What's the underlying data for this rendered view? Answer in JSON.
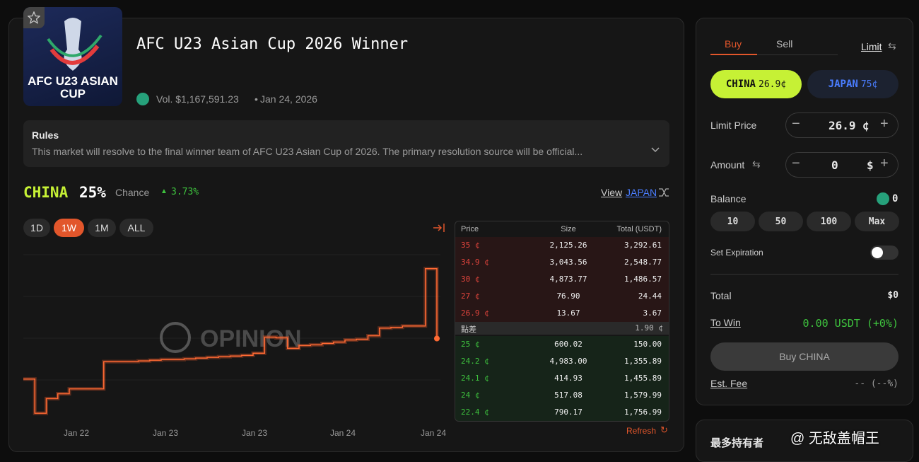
{
  "market": {
    "logo_text": "AFC U23 ASIAN CUP",
    "title": "AFC U23 Asian Cup 2026 Winner",
    "volume": "Vol. $1,167,591.23",
    "date": "Jan 24, 2026"
  },
  "rules": {
    "heading": "Rules",
    "text": "This market will resolve to the final winner team of AFC U23 Asian Cup of 2026. The primary resolution source will be official..."
  },
  "outcome": {
    "name": "CHINA",
    "chance": "25%",
    "chance_label": "Chance",
    "change": "3.73%",
    "view_label": "View",
    "view_link": "JAPAN"
  },
  "ranges": [
    "1D",
    "1W",
    "1M",
    "ALL"
  ],
  "active_range": 1,
  "price_chart": {
    "watermark": "OPINION",
    "ylim": [
      13,
      37
    ],
    "values": [
      19.2,
      14.3,
      16.4,
      17.1,
      17.8,
      17.8,
      17.8,
      21.7,
      21.7,
      21.7,
      21.8,
      21.9,
      22.0,
      22.0,
      22.1,
      22.2,
      22.3,
      22.4,
      22.5,
      22.6,
      22.9,
      25.2,
      25.1,
      23.6,
      24.0,
      24.1,
      24.3,
      24.5,
      24.8,
      24.9,
      25.4,
      26.5,
      26.6,
      26.8,
      26.8,
      35.0,
      25.0
    ],
    "x_labels": [
      "Jan 22",
      "Jan 23",
      "Jan 23",
      "Jan 24",
      "Jan 24"
    ]
  },
  "order_book": {
    "headers": [
      "Price",
      "Size",
      "Total (USDT)"
    ],
    "asks": [
      [
        "35 ¢",
        "2,125.26",
        "3,292.61"
      ],
      [
        "34.9 ¢",
        "3,043.56",
        "2,548.77"
      ],
      [
        "30 ¢",
        "4,873.77",
        "1,486.57"
      ],
      [
        "27 ¢",
        "76.90",
        "24.44"
      ],
      [
        "26.9 ¢",
        "13.67",
        "3.67"
      ]
    ],
    "spread_label": "點差",
    "spread": "1.90 ¢",
    "bids": [
      [
        "25 ¢",
        "600.02",
        "150.00"
      ],
      [
        "24.2 ¢",
        "4,983.00",
        "1,355.89"
      ],
      [
        "24.1 ¢",
        "414.93",
        "1,455.89"
      ],
      [
        "24 ¢",
        "517.08",
        "1,579.99"
      ],
      [
        "22.4 ¢",
        "790.17",
        "1,756.99"
      ]
    ],
    "refresh": "Refresh"
  },
  "trade": {
    "tabs": [
      "Buy",
      "Sell"
    ],
    "order_type": "Limit",
    "outcomes": [
      {
        "name": "CHINA",
        "price": "26.9¢"
      },
      {
        "name": "JAPAN",
        "price": "75¢"
      }
    ],
    "limit_price_label": "Limit Price",
    "limit_price": "26.9",
    "price_unit": "¢",
    "amount_label": "Amount",
    "amount": "0",
    "amount_unit": "$",
    "balance_label": "Balance",
    "balance": "0",
    "quick_amounts": [
      "10",
      "50",
      "100",
      "Max"
    ],
    "expiration_label": "Set Expiration",
    "total_label": "Total",
    "total": "$0",
    "to_win_label": "To Win",
    "to_win": "0.00 USDT (+0%)",
    "button": "Buy CHINA",
    "fee_label": "Est. Fee",
    "fee": "-- (--%)"
  },
  "holders": {
    "title": "最多持有者"
  },
  "watermark": "@ 无敌盖帽王"
}
